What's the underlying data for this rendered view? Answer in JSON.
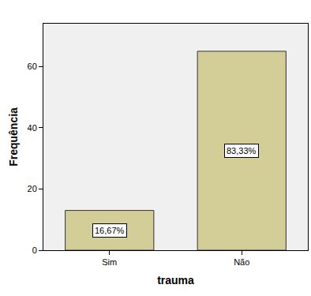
{
  "chart_data": {
    "type": "bar",
    "x_label": "trauma",
    "y_label": "Frequência",
    "categories": [
      "Sim",
      "Não"
    ],
    "values": [
      13,
      65
    ],
    "color": "#d3ce97",
    "ylim": [
      0,
      74
    ],
    "yticks": [
      0,
      20,
      40,
      60
    ],
    "grid": false,
    "annotations": [
      {
        "category": "Sim",
        "text": "16,67%"
      },
      {
        "category": "Não",
        "text": "83,33%"
      }
    ]
  }
}
